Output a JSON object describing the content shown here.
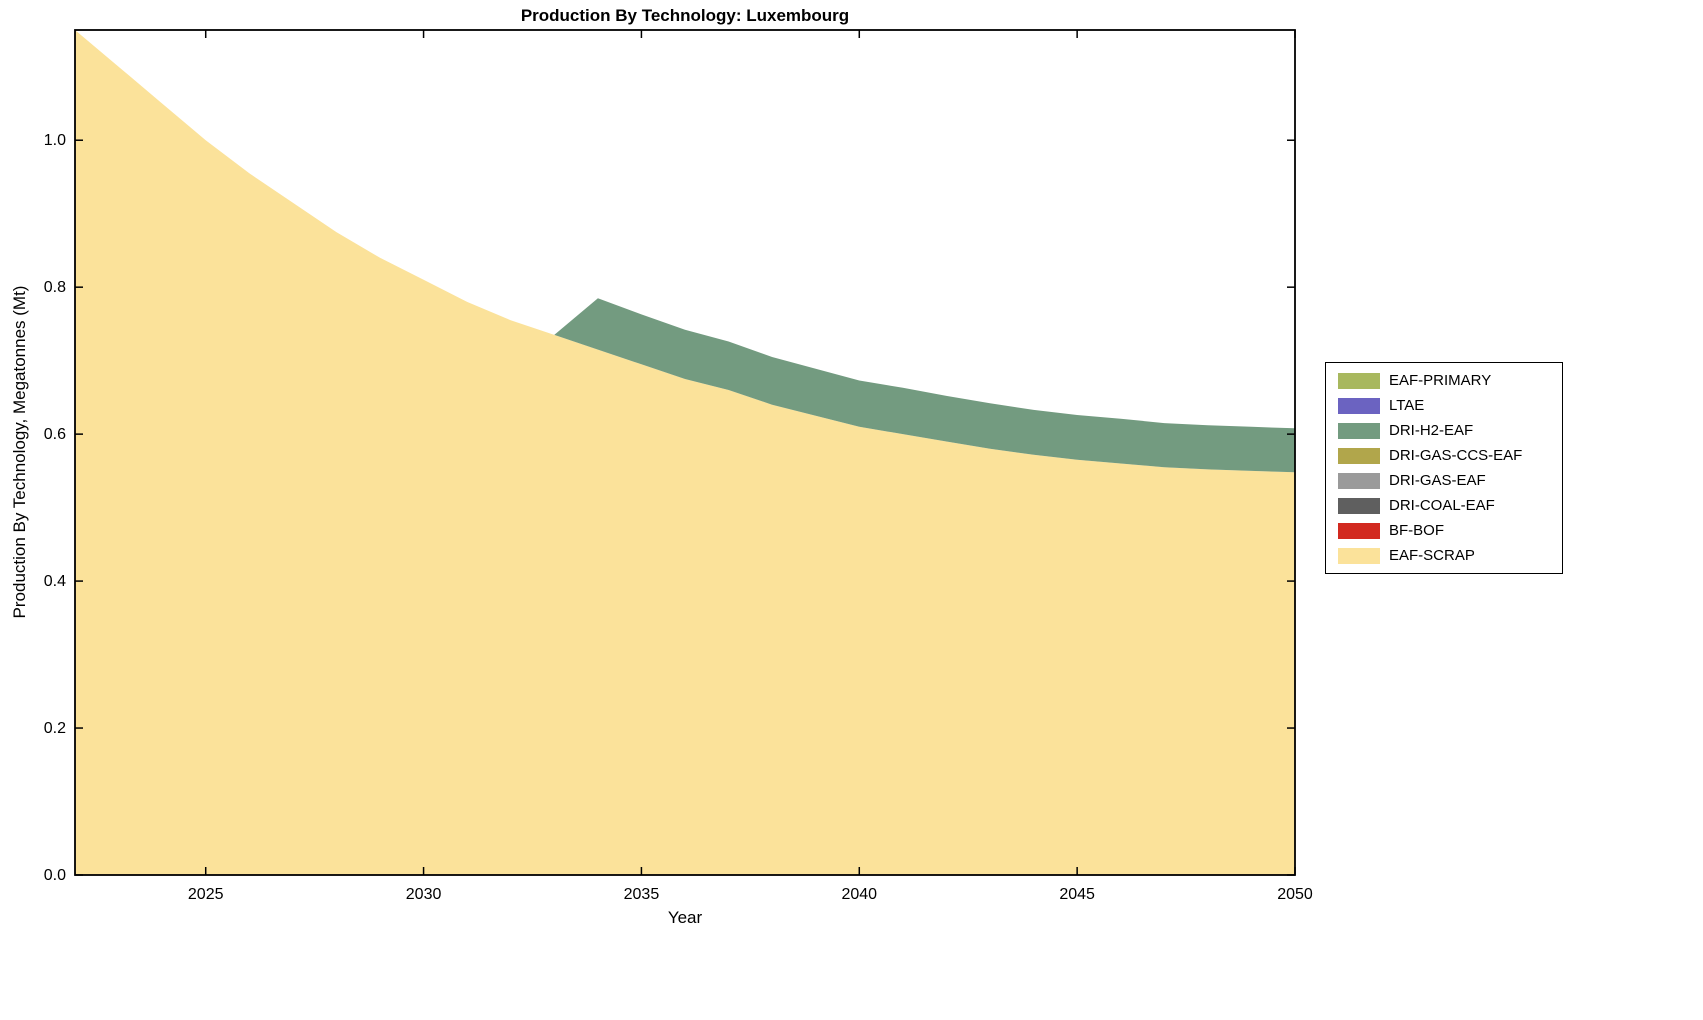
{
  "title": "Production By Technology: Luxembourg",
  "chart_data": {
    "type": "area",
    "stacked": true,
    "title": "Production By Technology: Luxembourg",
    "xlabel": "Year",
    "ylabel": "Production By Technology, Megatonnes (Mt)",
    "background_color": "#ffffff",
    "axis_color": "#000000",
    "grid": false,
    "legend_position": "right-outside",
    "xlim": [
      2022,
      2050
    ],
    "ylim": [
      0,
      1.15
    ],
    "xticks": [
      2025,
      2030,
      2035,
      2040,
      2045,
      2050
    ],
    "xtick_labels": [
      "2025",
      "2030",
      "2035",
      "2040",
      "2045",
      "2050"
    ],
    "yticks": [
      0.0,
      0.2,
      0.4,
      0.6,
      0.8,
      1.0
    ],
    "ytick_labels": [
      "0.0",
      "0.2",
      "0.4",
      "0.6",
      "0.8",
      "1.0"
    ],
    "x": [
      2022,
      2023,
      2024,
      2025,
      2026,
      2027,
      2028,
      2029,
      2030,
      2031,
      2032,
      2033,
      2034,
      2035,
      2036,
      2037,
      2038,
      2039,
      2040,
      2041,
      2042,
      2043,
      2044,
      2045,
      2046,
      2047,
      2048,
      2049,
      2050
    ],
    "series": [
      {
        "name": "EAF-PRIMARY",
        "color": "#a8b85e",
        "values": [
          0,
          0,
          0,
          0,
          0,
          0,
          0,
          0,
          0,
          0,
          0,
          0,
          0,
          0,
          0,
          0,
          0,
          0,
          0,
          0,
          0,
          0,
          0,
          0,
          0,
          0,
          0,
          0,
          0
        ]
      },
      {
        "name": "LTAE",
        "color": "#6b63c1",
        "values": [
          0,
          0,
          0,
          0,
          0,
          0,
          0,
          0,
          0,
          0,
          0,
          0,
          0,
          0,
          0,
          0,
          0,
          0,
          0,
          0,
          0,
          0,
          0,
          0,
          0,
          0,
          0,
          0,
          0
        ]
      },
      {
        "name": "DRI-H2-EAF",
        "color": "#739b80",
        "values": [
          0,
          0,
          0,
          0,
          0,
          0,
          0,
          0,
          0,
          0,
          0,
          0,
          0.07,
          0.068,
          0.067,
          0.066,
          0.065,
          0.064,
          0.063,
          0.063,
          0.062,
          0.062,
          0.061,
          0.061,
          0.061,
          0.06,
          0.06,
          0.06,
          0.06
        ]
      },
      {
        "name": "DRI-GAS-CCS-EAF",
        "color": "#b1a64b",
        "values": [
          0,
          0,
          0,
          0,
          0,
          0,
          0,
          0,
          0,
          0,
          0,
          0,
          0,
          0,
          0,
          0,
          0,
          0,
          0,
          0,
          0,
          0,
          0,
          0,
          0,
          0,
          0,
          0,
          0
        ]
      },
      {
        "name": "DRI-GAS-EAF",
        "color": "#9a9a9a",
        "values": [
          0,
          0,
          0,
          0,
          0,
          0,
          0,
          0,
          0,
          0,
          0,
          0,
          0,
          0,
          0,
          0,
          0,
          0,
          0,
          0,
          0,
          0,
          0,
          0,
          0,
          0,
          0,
          0,
          0
        ]
      },
      {
        "name": "DRI-COAL-EAF",
        "color": "#5f5f5f",
        "values": [
          0,
          0,
          0,
          0,
          0,
          0,
          0,
          0,
          0,
          0,
          0,
          0,
          0,
          0,
          0,
          0,
          0,
          0,
          0,
          0,
          0,
          0,
          0,
          0,
          0,
          0,
          0,
          0,
          0
        ]
      },
      {
        "name": "BF-BOF",
        "color": "#d2291f",
        "values": [
          0,
          0,
          0,
          0,
          0,
          0,
          0,
          0,
          0,
          0,
          0,
          0,
          0,
          0,
          0,
          0,
          0,
          0,
          0,
          0,
          0,
          0,
          0,
          0,
          0,
          0,
          0,
          0,
          0
        ]
      },
      {
        "name": "EAF-SCRAP",
        "color": "#fbe29a",
        "values": [
          1.15,
          1.1,
          1.05,
          1.0,
          0.955,
          0.915,
          0.875,
          0.84,
          0.81,
          0.78,
          0.755,
          0.735,
          0.715,
          0.695,
          0.675,
          0.66,
          0.64,
          0.625,
          0.61,
          0.6,
          0.59,
          0.58,
          0.572,
          0.565,
          0.56,
          0.555,
          0.552,
          0.55,
          0.548
        ]
      }
    ]
  }
}
